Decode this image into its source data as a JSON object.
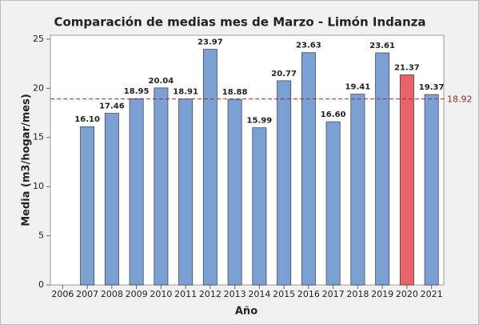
{
  "chart_data": {
    "type": "bar",
    "title": "Comparación de medias mes de Marzo - Limón Indanza",
    "x_label": "Año",
    "y_label": "Media (m3/hogar/mes)",
    "categories": [
      "2006",
      "2007",
      "2008",
      "2009",
      "2010",
      "2011",
      "2012",
      "2013",
      "2014",
      "2015",
      "2016",
      "2017",
      "2018",
      "2019",
      "2020",
      "2021"
    ],
    "values": [
      null,
      16.1,
      17.46,
      18.95,
      20.04,
      18.91,
      23.97,
      18.88,
      15.99,
      20.77,
      23.63,
      16.6,
      19.41,
      23.61,
      21.37,
      19.37
    ],
    "value_labels": [
      null,
      "16.10",
      "17.46",
      "18.95",
      "20.04",
      "18.91",
      "23.97",
      "18.88",
      "15.99",
      "20.77",
      "23.63",
      "16.60",
      "19.41",
      "23.61",
      "21.37",
      "19.37"
    ],
    "colors": [
      null,
      "#7ba0d4",
      "#7ba0d4",
      "#7ba0d4",
      "#7ba0d4",
      "#7ba0d4",
      "#7ba0d4",
      "#7ba0d4",
      "#7ba0d4",
      "#7ba0d4",
      "#7ba0d4",
      "#7ba0d4",
      "#7ba0d4",
      "#7ba0d4",
      "#e8636a",
      "#7ba0d4"
    ],
    "reference_line": {
      "value": 18.92,
      "label": "18.92",
      "color": "#a3282d"
    },
    "ylim": [
      0,
      25.4
    ],
    "yticks": [
      0,
      5,
      10,
      15,
      20,
      25
    ]
  }
}
